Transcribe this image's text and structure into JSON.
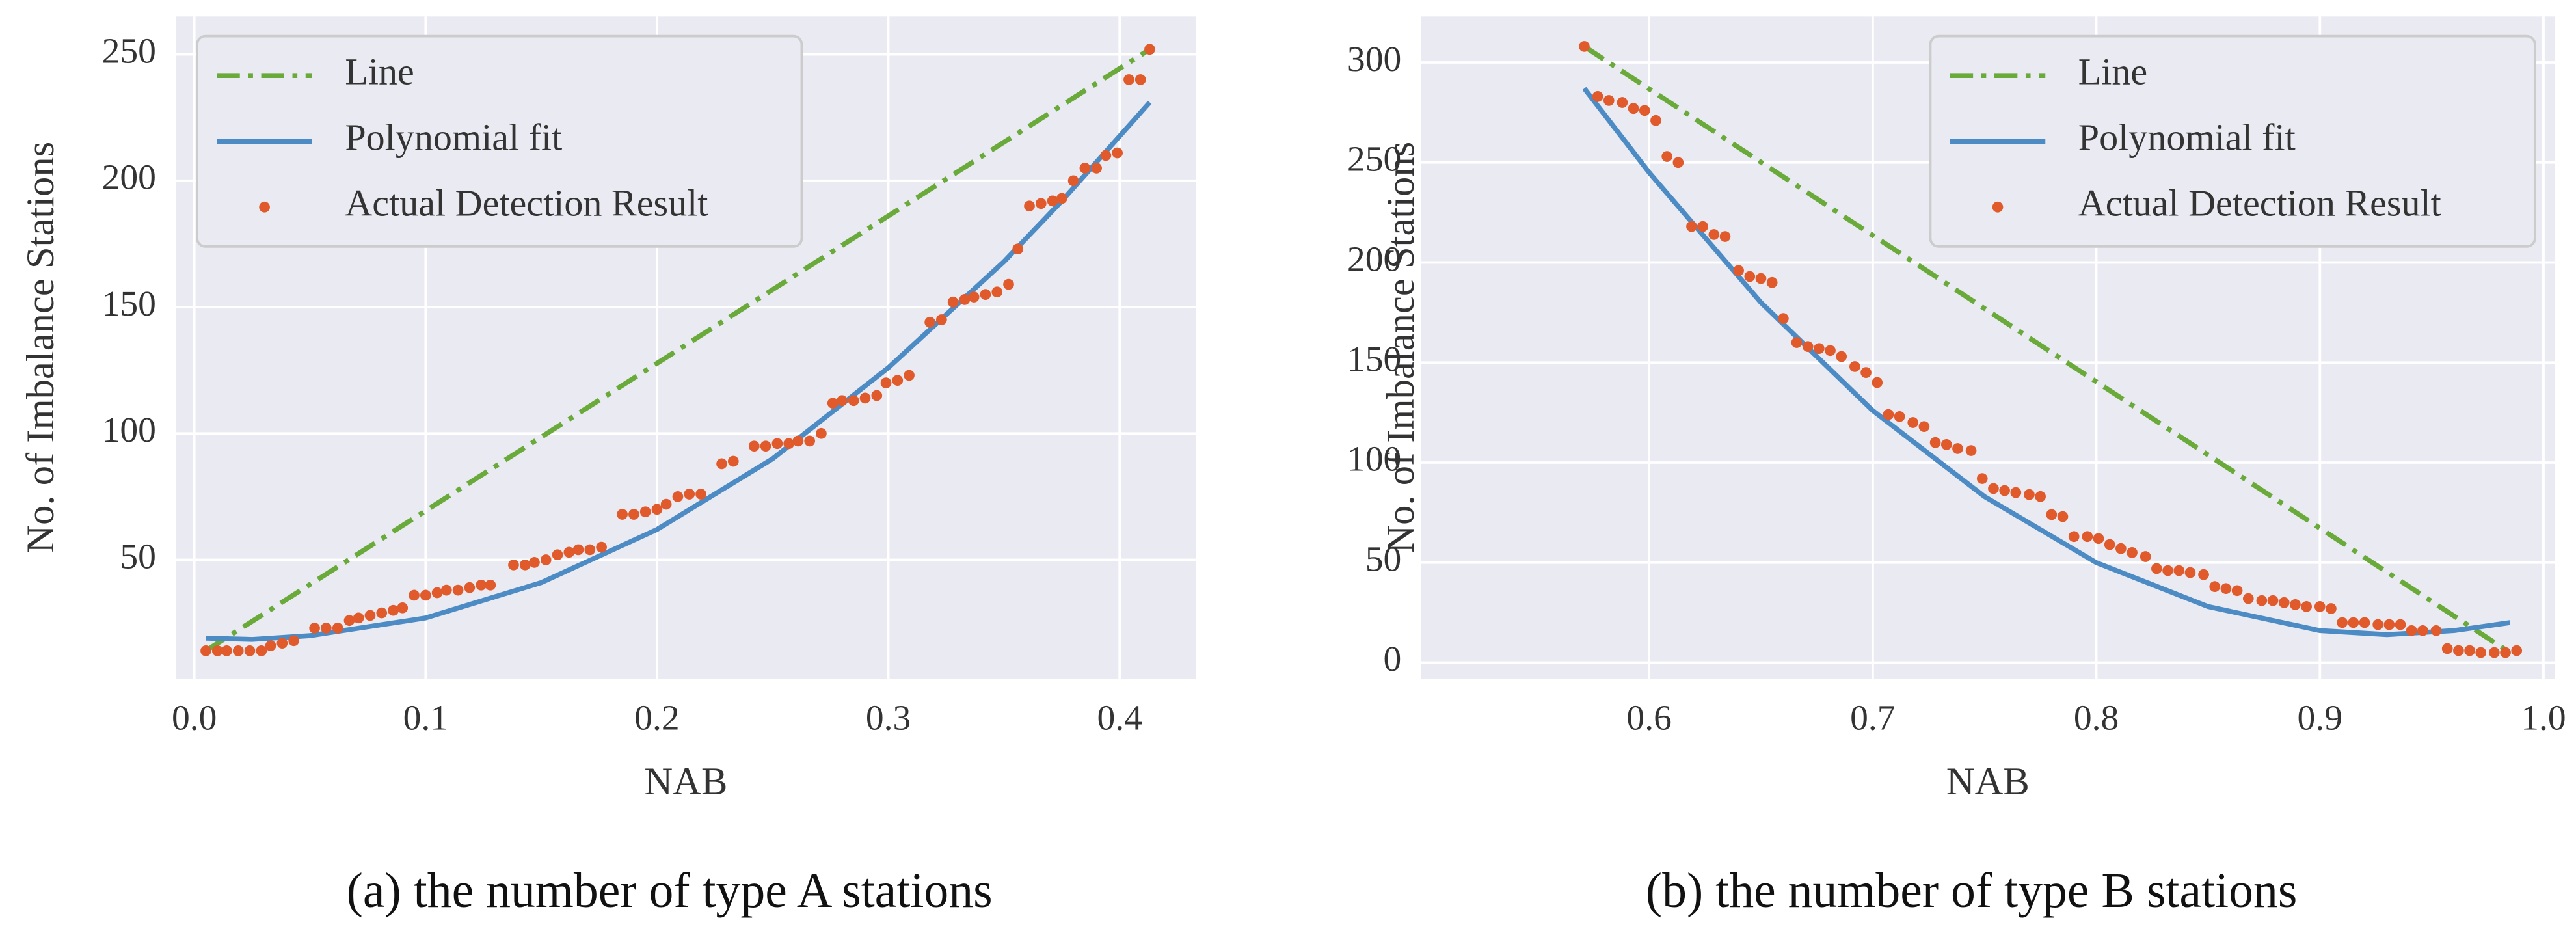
{
  "chart_data": [
    {
      "type": "line",
      "caption": "(a) the number of type A stations",
      "xlabel": "NAB",
      "ylabel": "No. of Imbalance Stations",
      "xlim": [
        -0.008,
        0.433
      ],
      "ylim": [
        3,
        265
      ],
      "xticks": [
        {
          "value": 0,
          "label": "0.0"
        },
        0.1,
        0.2,
        0.3,
        0.4
      ],
      "yticks": [
        50,
        100,
        150,
        200,
        250
      ],
      "grid": true,
      "legend": "upper left",
      "series": [
        {
          "name": "Line",
          "kind": "line",
          "style": "dashdot",
          "color": "#6aaa3a",
          "x": [
            0.005,
            0.413
          ],
          "values": [
            14,
            252
          ]
        },
        {
          "name": "Polynomial fit",
          "kind": "line",
          "style": "solid",
          "color": "#4c8bc4",
          "x": [
            0.005,
            0.025,
            0.05,
            0.1,
            0.15,
            0.2,
            0.25,
            0.3,
            0.35,
            0.375,
            0.413
          ],
          "values": [
            19,
            18.5,
            20,
            27,
            41,
            62,
            90,
            126,
            168,
            192,
            231
          ]
        },
        {
          "name": "Actual Detection Result",
          "kind": "scatter",
          "color": "#e05a2b",
          "x": [
            0.005,
            0.01,
            0.014,
            0.019,
            0.024,
            0.029,
            0.033,
            0.038,
            0.043,
            0.052,
            0.057,
            0.062,
            0.067,
            0.071,
            0.076,
            0.081,
            0.086,
            0.09,
            0.095,
            0.1,
            0.105,
            0.109,
            0.114,
            0.119,
            0.124,
            0.128,
            0.138,
            0.143,
            0.147,
            0.152,
            0.157,
            0.162,
            0.166,
            0.171,
            0.176,
            0.185,
            0.19,
            0.195,
            0.2,
            0.204,
            0.209,
            0.214,
            0.219,
            0.228,
            0.233,
            0.242,
            0.247,
            0.252,
            0.257,
            0.261,
            0.266,
            0.271,
            0.276,
            0.28,
            0.285,
            0.29,
            0.295,
            0.299,
            0.304,
            0.309,
            0.318,
            0.323,
            0.328,
            0.333,
            0.337,
            0.342,
            0.347,
            0.352,
            0.356,
            0.361,
            0.366,
            0.371,
            0.375,
            0.38,
            0.385,
            0.39,
            0.394,
            0.399,
            0.404,
            0.409,
            0.413
          ],
          "values": [
            14,
            14,
            14,
            14,
            14,
            14,
            16,
            17,
            18,
            23,
            23,
            23,
            26,
            27,
            28,
            29,
            30,
            31,
            36,
            36,
            37,
            38,
            38,
            39,
            40,
            40,
            48,
            48,
            49,
            50,
            52,
            53,
            54,
            54,
            55,
            68,
            68,
            69,
            70,
            72,
            75,
            76,
            76,
            88,
            89,
            95,
            95,
            96,
            96,
            97,
            97,
            100,
            112,
            113,
            113,
            114,
            115,
            120,
            121,
            123,
            144,
            145,
            152,
            153,
            154,
            155,
            156,
            159,
            173,
            190,
            191,
            192,
            193,
            200,
            205,
            205,
            210,
            211,
            240,
            240,
            252
          ]
        }
      ]
    },
    {
      "type": "line",
      "caption": "(b) the number of type B stations",
      "xlabel": "NAB",
      "ylabel": "No. of Imbalance Stations",
      "xlim": [
        0.498,
        1.005
      ],
      "ylim": [
        -8,
        323
      ],
      "xticks": [
        0.6,
        0.7,
        0.8,
        0.9,
        {
          "value": 1,
          "label": "1.0"
        }
      ],
      "yticks": [
        0,
        50,
        100,
        150,
        200,
        250,
        300
      ],
      "grid": true,
      "legend": "upper right",
      "series": [
        {
          "name": "Line",
          "kind": "line",
          "style": "dashdot",
          "color": "#6aaa3a",
          "x": [
            0.571,
            0.985
          ],
          "values": [
            308,
            5
          ]
        },
        {
          "name": "Polynomial fit",
          "kind": "line",
          "style": "solid",
          "color": "#4c8bc4",
          "x": [
            0.571,
            0.6,
            0.65,
            0.7,
            0.75,
            0.8,
            0.85,
            0.9,
            0.93,
            0.96,
            0.985
          ],
          "values": [
            287,
            245,
            180,
            126,
            83,
            50,
            28,
            16,
            14,
            16,
            20
          ]
        },
        {
          "name": "Actual Detection Result",
          "kind": "scatter",
          "color": "#e05a2b",
          "x": [
            0.571,
            0.577,
            0.582,
            0.588,
            0.593,
            0.598,
            0.603,
            0.608,
            0.613,
            0.619,
            0.624,
            0.629,
            0.634,
            0.64,
            0.645,
            0.65,
            0.655,
            0.66,
            0.666,
            0.671,
            0.676,
            0.681,
            0.686,
            0.692,
            0.697,
            0.702,
            0.707,
            0.712,
            0.718,
            0.723,
            0.728,
            0.733,
            0.738,
            0.744,
            0.749,
            0.754,
            0.759,
            0.764,
            0.77,
            0.775,
            0.78,
            0.785,
            0.79,
            0.796,
            0.801,
            0.806,
            0.811,
            0.816,
            0.822,
            0.827,
            0.832,
            0.837,
            0.842,
            0.848,
            0.853,
            0.858,
            0.863,
            0.868,
            0.874,
            0.879,
            0.884,
            0.889,
            0.894,
            0.9,
            0.905,
            0.91,
            0.915,
            0.92,
            0.926,
            0.931,
            0.936,
            0.941,
            0.946,
            0.952,
            0.957,
            0.962,
            0.967,
            0.972,
            0.978,
            0.983,
            0.988
          ],
          "values": [
            308,
            283,
            281,
            280,
            277,
            276,
            271,
            253,
            250,
            218,
            218,
            214,
            213,
            196,
            193,
            192,
            190,
            172,
            160,
            158,
            157,
            156,
            153,
            148,
            145,
            140,
            124,
            123,
            120,
            118,
            110,
            109,
            107,
            106,
            92,
            87,
            86,
            85,
            84,
            83,
            74,
            73,
            63,
            63,
            62,
            59,
            57,
            55,
            53,
            47,
            46,
            46,
            45,
            44,
            38,
            37,
            36,
            32,
            31,
            31,
            30,
            29,
            28,
            28,
            27,
            20,
            20,
            20,
            19,
            19,
            19,
            16,
            16,
            16,
            7,
            6,
            6,
            5,
            5,
            5,
            6
          ]
        }
      ]
    }
  ]
}
